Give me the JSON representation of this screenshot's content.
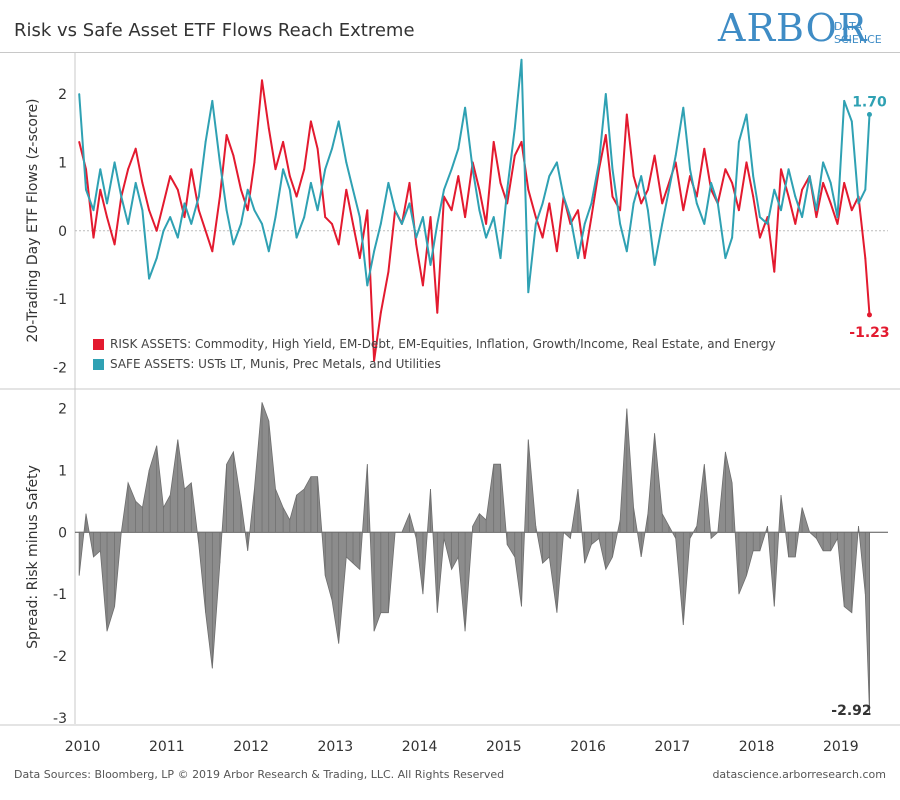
{
  "title": "Risk vs Safe Asset ETF Flows Reach Extreme",
  "logo": {
    "main": "ARBOR",
    "sub_line1": "DATA",
    "sub_line2": "SCIENCE"
  },
  "footer": {
    "source": "Data Sources: Bloomberg, LP © 2019 Arbor Research & Trading, LLC. All Rights Reserved",
    "site": "datascience.arborresearch.com"
  },
  "colors": {
    "risk": "#e31a2f",
    "safe": "#2fa1b3",
    "spread": "#8c8c8c",
    "divider": "#c8c8c8"
  },
  "chart_data": [
    {
      "type": "line",
      "title": "",
      "ylabel": "20-Trading Day ETF Flows (z-score)",
      "ylim": [
        -2.3,
        2.6
      ],
      "yticks": [
        2,
        1,
        0,
        -1,
        -2
      ],
      "xlim": [
        2009.95,
        2019.6
      ],
      "xticks": [
        2010,
        2011,
        2012,
        2013,
        2014,
        2015,
        2016,
        2017,
        2018,
        2019
      ],
      "legend_position": "bottom-left",
      "series": [
        {
          "name": "RISK ASSETS: Commodity, High Yield, EM-Debt, EM-Equities, Inflation, Growth/Income, Real Estate, and Energy",
          "end_label": "-1.23",
          "x": [
            2010.0,
            2010.08,
            2010.17,
            2010.25,
            2010.33,
            2010.42,
            2010.5,
            2010.58,
            2010.67,
            2010.75,
            2010.83,
            2010.92,
            2011.0,
            2011.08,
            2011.17,
            2011.25,
            2011.33,
            2011.42,
            2011.5,
            2011.58,
            2011.67,
            2011.75,
            2011.83,
            2011.92,
            2012.0,
            2012.08,
            2012.17,
            2012.25,
            2012.33,
            2012.42,
            2012.5,
            2012.58,
            2012.67,
            2012.75,
            2012.83,
            2012.92,
            2013.0,
            2013.08,
            2013.17,
            2013.25,
            2013.33,
            2013.42,
            2013.5,
            2013.58,
            2013.67,
            2013.75,
            2013.83,
            2013.92,
            2014.0,
            2014.08,
            2014.17,
            2014.25,
            2014.33,
            2014.42,
            2014.5,
            2014.58,
            2014.67,
            2014.75,
            2014.83,
            2014.92,
            2015.0,
            2015.08,
            2015.17,
            2015.25,
            2015.33,
            2015.42,
            2015.5,
            2015.58,
            2015.67,
            2015.75,
            2015.83,
            2015.92,
            2016.0,
            2016.08,
            2016.17,
            2016.25,
            2016.33,
            2016.42,
            2016.5,
            2016.58,
            2016.67,
            2016.75,
            2016.83,
            2016.92,
            2017.0,
            2017.08,
            2017.17,
            2017.25,
            2017.33,
            2017.42,
            2017.5,
            2017.58,
            2017.67,
            2017.75,
            2017.83,
            2017.92,
            2018.0,
            2018.08,
            2018.17,
            2018.25,
            2018.33,
            2018.42,
            2018.5,
            2018.58,
            2018.67,
            2018.75,
            2018.83,
            2018.92,
            2019.0,
            2019.08,
            2019.17,
            2019.25,
            2019.33,
            2019.38
          ],
          "values": [
            1.3,
            0.9,
            -0.1,
            0.6,
            0.2,
            -0.2,
            0.5,
            0.9,
            1.2,
            0.7,
            0.3,
            0.0,
            0.4,
            0.8,
            0.6,
            0.2,
            0.9,
            0.3,
            0.0,
            -0.3,
            0.5,
            1.4,
            1.1,
            0.6,
            0.3,
            1.0,
            2.2,
            1.5,
            0.9,
            1.3,
            0.8,
            0.5,
            0.9,
            1.6,
            1.2,
            0.2,
            0.1,
            -0.2,
            0.6,
            0.1,
            -0.4,
            0.3,
            -1.9,
            -1.2,
            -0.6,
            0.3,
            0.1,
            0.7,
            -0.2,
            -0.8,
            0.2,
            -1.2,
            0.5,
            0.3,
            0.8,
            0.2,
            1.0,
            0.6,
            0.1,
            1.3,
            0.7,
            0.4,
            1.1,
            1.3,
            0.6,
            0.2,
            -0.1,
            0.4,
            -0.3,
            0.5,
            0.1,
            0.3,
            -0.4,
            0.2,
            0.9,
            1.4,
            0.5,
            0.3,
            1.7,
            0.8,
            0.4,
            0.6,
            1.1,
            0.4,
            0.7,
            1.0,
            0.3,
            0.8,
            0.5,
            1.2,
            0.6,
            0.4,
            0.9,
            0.7,
            0.3,
            1.0,
            0.5,
            -0.1,
            0.2,
            -0.6,
            0.9,
            0.5,
            0.1,
            0.6,
            0.8,
            0.2,
            0.7,
            0.4,
            0.1,
            0.7,
            0.3,
            0.5,
            -0.4,
            -1.23
          ]
        },
        {
          "name": "SAFE ASSETS: USTs LT, Munis, Prec Metals, and Utilities",
          "end_label": "1.70",
          "x": [
            2010.0,
            2010.08,
            2010.17,
            2010.25,
            2010.33,
            2010.42,
            2010.5,
            2010.58,
            2010.67,
            2010.75,
            2010.83,
            2010.92,
            2011.0,
            2011.08,
            2011.17,
            2011.25,
            2011.33,
            2011.42,
            2011.5,
            2011.58,
            2011.67,
            2011.75,
            2011.83,
            2011.92,
            2012.0,
            2012.08,
            2012.17,
            2012.25,
            2012.33,
            2012.42,
            2012.5,
            2012.58,
            2012.67,
            2012.75,
            2012.83,
            2012.92,
            2013.0,
            2013.08,
            2013.17,
            2013.25,
            2013.33,
            2013.42,
            2013.5,
            2013.58,
            2013.67,
            2013.75,
            2013.83,
            2013.92,
            2014.0,
            2014.08,
            2014.17,
            2014.25,
            2014.33,
            2014.42,
            2014.5,
            2014.58,
            2014.67,
            2014.75,
            2014.83,
            2014.92,
            2015.0,
            2015.08,
            2015.17,
            2015.25,
            2015.33,
            2015.42,
            2015.5,
            2015.58,
            2015.67,
            2015.75,
            2015.83,
            2015.92,
            2016.0,
            2016.08,
            2016.17,
            2016.25,
            2016.33,
            2016.42,
            2016.5,
            2016.58,
            2016.67,
            2016.75,
            2016.83,
            2016.92,
            2017.0,
            2017.08,
            2017.17,
            2017.25,
            2017.33,
            2017.42,
            2017.5,
            2017.58,
            2017.67,
            2017.75,
            2017.83,
            2017.92,
            2018.0,
            2018.08,
            2018.17,
            2018.25,
            2018.33,
            2018.42,
            2018.5,
            2018.58,
            2018.67,
            2018.75,
            2018.83,
            2018.92,
            2019.0,
            2019.08,
            2019.17,
            2019.25,
            2019.33,
            2019.38
          ],
          "values": [
            2.0,
            0.6,
            0.3,
            0.9,
            0.4,
            1.0,
            0.5,
            0.1,
            0.7,
            0.3,
            -0.7,
            -0.4,
            0.0,
            0.2,
            -0.1,
            0.4,
            0.1,
            0.5,
            1.3,
            1.9,
            1.0,
            0.3,
            -0.2,
            0.1,
            0.6,
            0.3,
            0.1,
            -0.3,
            0.2,
            0.9,
            0.6,
            -0.1,
            0.2,
            0.7,
            0.3,
            0.9,
            1.2,
            1.6,
            1.0,
            0.6,
            0.2,
            -0.8,
            -0.3,
            0.1,
            0.7,
            0.3,
            0.1,
            0.4,
            -0.1,
            0.2,
            -0.5,
            0.1,
            0.6,
            0.9,
            1.2,
            1.8,
            0.9,
            0.3,
            -0.1,
            0.2,
            -0.4,
            0.6,
            1.5,
            2.5,
            -0.9,
            0.1,
            0.4,
            0.8,
            1.0,
            0.5,
            0.2,
            -0.4,
            0.1,
            0.4,
            1.0,
            2.0,
            0.9,
            0.1,
            -0.3,
            0.4,
            0.8,
            0.3,
            -0.5,
            0.1,
            0.6,
            1.1,
            1.8,
            0.9,
            0.4,
            0.1,
            0.7,
            0.4,
            -0.4,
            -0.1,
            1.3,
            1.7,
            0.8,
            0.2,
            0.1,
            0.6,
            0.3,
            0.9,
            0.5,
            0.2,
            0.8,
            0.3,
            1.0,
            0.7,
            0.2,
            1.9,
            1.6,
            0.4,
            0.6,
            1.7
          ]
        }
      ]
    },
    {
      "type": "area",
      "title": "",
      "ylabel": "Spread: Risk minus Safety",
      "ylim": [
        -3.1,
        2.3
      ],
      "yticks": [
        2,
        1,
        0,
        -1,
        -2,
        -3
      ],
      "xlim": [
        2009.95,
        2019.6
      ],
      "xticks": [
        2010,
        2011,
        2012,
        2013,
        2014,
        2015,
        2016,
        2017,
        2018,
        2019
      ],
      "series": [
        {
          "name": "",
          "end_label": "-2.92",
          "x": [
            2010.0,
            2010.08,
            2010.17,
            2010.25,
            2010.33,
            2010.42,
            2010.5,
            2010.58,
            2010.67,
            2010.75,
            2010.83,
            2010.92,
            2011.0,
            2011.08,
            2011.17,
            2011.25,
            2011.33,
            2011.42,
            2011.5,
            2011.58,
            2011.67,
            2011.75,
            2011.83,
            2011.92,
            2012.0,
            2012.08,
            2012.17,
            2012.25,
            2012.33,
            2012.42,
            2012.5,
            2012.58,
            2012.67,
            2012.75,
            2012.83,
            2012.92,
            2013.0,
            2013.08,
            2013.17,
            2013.25,
            2013.33,
            2013.42,
            2013.5,
            2013.58,
            2013.67,
            2013.75,
            2013.83,
            2013.92,
            2014.0,
            2014.08,
            2014.17,
            2014.25,
            2014.33,
            2014.42,
            2014.5,
            2014.58,
            2014.67,
            2014.75,
            2014.83,
            2014.92,
            2015.0,
            2015.08,
            2015.17,
            2015.25,
            2015.33,
            2015.42,
            2015.5,
            2015.58,
            2015.67,
            2015.75,
            2015.83,
            2015.92,
            2016.0,
            2016.08,
            2016.17,
            2016.25,
            2016.33,
            2016.42,
            2016.5,
            2016.58,
            2016.67,
            2016.75,
            2016.83,
            2016.92,
            2017.0,
            2017.08,
            2017.17,
            2017.25,
            2017.33,
            2017.42,
            2017.5,
            2017.58,
            2017.67,
            2017.75,
            2017.83,
            2017.92,
            2018.0,
            2018.08,
            2018.17,
            2018.25,
            2018.33,
            2018.42,
            2018.5,
            2018.58,
            2018.67,
            2018.75,
            2018.83,
            2018.92,
            2019.0,
            2019.08,
            2019.17,
            2019.25,
            2019.33,
            2019.38
          ],
          "values": [
            -0.7,
            0.3,
            -0.4,
            -0.3,
            -1.6,
            -1.2,
            0.0,
            0.8,
            0.5,
            0.4,
            1.0,
            1.4,
            0.4,
            0.6,
            1.5,
            0.7,
            0.8,
            -0.2,
            -1.3,
            -2.2,
            -0.5,
            1.1,
            1.3,
            0.5,
            -0.3,
            0.7,
            2.1,
            1.8,
            0.7,
            0.4,
            0.2,
            0.6,
            0.7,
            0.9,
            0.9,
            -0.7,
            -1.1,
            -1.8,
            -0.4,
            -0.5,
            -0.6,
            1.1,
            -1.6,
            -1.3,
            -1.3,
            0.0,
            0.0,
            0.3,
            -0.1,
            -1.0,
            0.7,
            -1.3,
            -0.1,
            -0.6,
            -0.4,
            -1.6,
            0.1,
            0.3,
            0.2,
            1.1,
            1.1,
            -0.2,
            -0.4,
            -1.2,
            1.5,
            0.1,
            -0.5,
            -0.4,
            -1.3,
            0.0,
            -0.1,
            0.7,
            -0.5,
            -0.2,
            -0.1,
            -0.6,
            -0.4,
            0.2,
            2.0,
            0.4,
            -0.4,
            0.3,
            1.6,
            0.3,
            0.1,
            -0.1,
            -1.5,
            -0.1,
            0.1,
            1.1,
            -0.1,
            0.0,
            1.3,
            0.8,
            -1.0,
            -0.7,
            -0.3,
            -0.3,
            0.1,
            -1.2,
            0.6,
            -0.4,
            -0.4,
            0.4,
            0.0,
            -0.1,
            -0.3,
            -0.3,
            -0.1,
            -1.2,
            -1.3,
            0.1,
            -1.0,
            -2.92
          ]
        }
      ]
    }
  ]
}
